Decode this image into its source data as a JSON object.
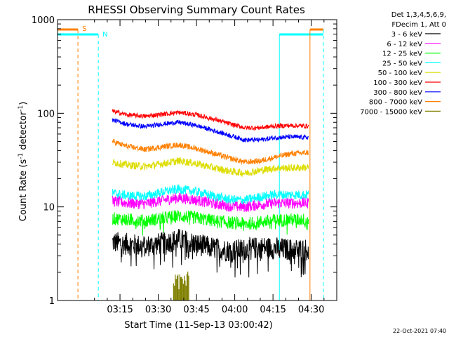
{
  "chart_data": {
    "type": "line",
    "title": "RHESSI Observing Summary Count Rates",
    "xlabel": "Start Time (11-Sep-13 03:00:42)",
    "ylabel_main": "Count Rate (s",
    "ylabel_sup1": "-1",
    "ylabel_mid": " detector",
    "ylabel_sup2": "-1",
    "ylabel_end": ")",
    "ylog": true,
    "ylim": [
      1,
      1000
    ],
    "xlim_min": [
      -10,
      100
    ],
    "yticks": [
      {
        "value": 1,
        "label": "1"
      },
      {
        "value": 10,
        "label": "10"
      },
      {
        "value": 100,
        "label": "100"
      },
      {
        "value": 1000,
        "label": "1000"
      }
    ],
    "xticks": [
      {
        "value": 15,
        "label": "03:15"
      },
      {
        "value": 30,
        "label": "03:30"
      },
      {
        "value": 45,
        "label": "03:45"
      },
      {
        "value": 60,
        "label": "04:00"
      },
      {
        "value": 75,
        "label": "04:15"
      },
      {
        "value": 90,
        "label": "04:30"
      }
    ],
    "legend_header": [
      "Det 1,3,4,5,6,9,",
      "FDecim 1, Att 0"
    ],
    "legend_position": "right",
    "series": [
      {
        "name": "3 - 6 keV",
        "color": "#000000",
        "points": [
          [
            12,
            4.2
          ],
          [
            18,
            4.0
          ],
          [
            25,
            3.8
          ],
          [
            32,
            4.1
          ],
          [
            38,
            4.5
          ],
          [
            45,
            4.0
          ],
          [
            52,
            3.6
          ],
          [
            58,
            3.4
          ],
          [
            64,
            3.5
          ],
          [
            70,
            3.7
          ],
          [
            76,
            3.6
          ],
          [
            82,
            3.5
          ],
          [
            89,
            3.5
          ]
        ]
      },
      {
        "name": "6 - 12 keV",
        "color": "#ff00ff",
        "points": [
          [
            12,
            11.5
          ],
          [
            18,
            11.0
          ],
          [
            25,
            10.8
          ],
          [
            32,
            11.8
          ],
          [
            38,
            12.5
          ],
          [
            45,
            11.8
          ],
          [
            52,
            10.8
          ],
          [
            58,
            10.2
          ],
          [
            64,
            10.0
          ],
          [
            70,
            10.6
          ],
          [
            76,
            11.0
          ],
          [
            82,
            11.0
          ],
          [
            89,
            11.0
          ]
        ]
      },
      {
        "name": "12 - 25 keV",
        "color": "#00ff00",
        "points": [
          [
            12,
            7.5
          ],
          [
            18,
            7.3
          ],
          [
            25,
            7.1
          ],
          [
            32,
            7.6
          ],
          [
            38,
            8.0
          ],
          [
            45,
            7.6
          ],
          [
            52,
            7.1
          ],
          [
            58,
            6.8
          ],
          [
            64,
            6.6
          ],
          [
            70,
            6.9
          ],
          [
            76,
            7.2
          ],
          [
            82,
            7.3
          ],
          [
            89,
            7.3
          ]
        ]
      },
      {
        "name": "25 - 50 keV",
        "color": "#00ffff",
        "points": [
          [
            12,
            14.0
          ],
          [
            18,
            13.2
          ],
          [
            25,
            13.0
          ],
          [
            32,
            14.5
          ],
          [
            38,
            15.5
          ],
          [
            45,
            14.5
          ],
          [
            52,
            13.0
          ],
          [
            58,
            12.0
          ],
          [
            64,
            11.8
          ],
          [
            70,
            12.8
          ],
          [
            76,
            13.5
          ],
          [
            82,
            13.5
          ],
          [
            89,
            13.5
          ]
        ]
      },
      {
        "name": "50 - 100 keV",
        "color": "#dddd00",
        "points": [
          [
            12,
            30
          ],
          [
            18,
            28
          ],
          [
            25,
            27
          ],
          [
            32,
            29
          ],
          [
            38,
            31
          ],
          [
            45,
            29
          ],
          [
            52,
            26
          ],
          [
            58,
            24
          ],
          [
            64,
            23
          ],
          [
            70,
            24.5
          ],
          [
            76,
            26
          ],
          [
            82,
            26
          ],
          [
            89,
            26.5
          ]
        ]
      },
      {
        "name": "100 - 300 keV",
        "color": "#ff0000",
        "points": [
          [
            12,
            105
          ],
          [
            18,
            96
          ],
          [
            25,
            93
          ],
          [
            32,
            98
          ],
          [
            38,
            102
          ],
          [
            45,
            96
          ],
          [
            52,
            86
          ],
          [
            58,
            77
          ],
          [
            64,
            70
          ],
          [
            70,
            70
          ],
          [
            76,
            73
          ],
          [
            82,
            74
          ],
          [
            89,
            73
          ]
        ]
      },
      {
        "name": "300 - 800 keV",
        "color": "#0000ff",
        "points": [
          [
            12,
            85
          ],
          [
            18,
            76
          ],
          [
            25,
            72
          ],
          [
            32,
            77
          ],
          [
            38,
            80
          ],
          [
            45,
            74
          ],
          [
            52,
            65
          ],
          [
            58,
            58
          ],
          [
            64,
            52
          ],
          [
            70,
            52
          ],
          [
            76,
            55
          ],
          [
            82,
            56
          ],
          [
            89,
            55
          ]
        ]
      },
      {
        "name": "800 - 7000 keV",
        "color": "#ff8000",
        "points": [
          [
            12,
            50
          ],
          [
            18,
            44
          ],
          [
            25,
            41
          ],
          [
            32,
            44
          ],
          [
            38,
            46
          ],
          [
            45,
            42
          ],
          [
            52,
            37
          ],
          [
            58,
            33
          ],
          [
            64,
            30
          ],
          [
            70,
            31
          ],
          [
            76,
            34
          ],
          [
            82,
            37
          ],
          [
            89,
            38
          ]
        ]
      },
      {
        "name": "7000 - 15000 keV",
        "color": "#808000",
        "points": [
          [
            36,
            1.5
          ],
          [
            37,
            2.0
          ],
          [
            38,
            1.3
          ],
          [
            39,
            2.0
          ],
          [
            40,
            1.4
          ],
          [
            41,
            2.0
          ],
          [
            42,
            1.6
          ]
        ]
      }
    ],
    "annotations": [
      {
        "label": "S",
        "color": "#ff8000"
      },
      {
        "label": "N",
        "color": "#00ffff"
      }
    ],
    "timestamp": "22-Oct-2021 07:40"
  }
}
